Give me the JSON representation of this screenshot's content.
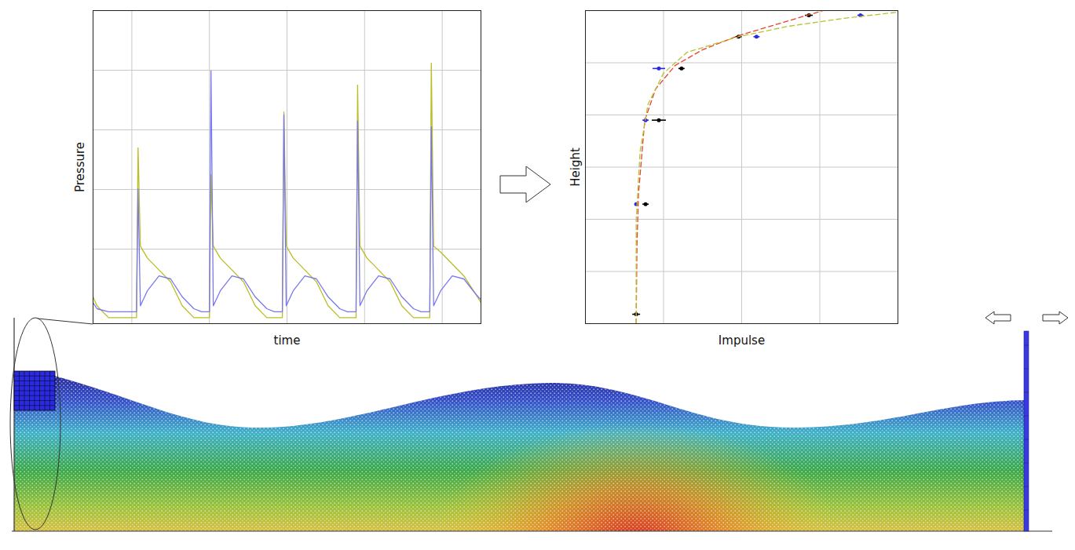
{
  "chart_data": [
    {
      "type": "line",
      "xlabel": "time",
      "ylabel": "Pressure",
      "x": [
        0,
        0.05,
        0.2,
        0.4,
        0.56,
        0.58,
        0.61,
        0.7,
        0.85,
        1.0,
        1.15,
        1.3,
        1.4,
        1.5,
        1.52,
        1.55,
        1.64,
        1.79,
        1.94,
        2.09,
        2.24,
        2.34,
        2.44,
        2.46,
        2.49,
        2.58,
        2.73,
        2.88,
        3.03,
        3.18,
        3.28,
        3.39,
        3.41,
        3.44,
        3.53,
        3.68,
        3.83,
        3.98,
        4.13,
        4.23,
        4.34,
        4.36,
        4.39,
        4.48,
        4.63,
        4.78,
        4.93,
        5.0
      ],
      "series": [
        {
          "color": "#bcbd22",
          "values": [
            0.45,
            0.3,
            0.1,
            0.1,
            0.1,
            2.95,
            1.3,
            1.1,
            0.9,
            0.7,
            0.3,
            0.1,
            0.1,
            0.1,
            2.5,
            1.3,
            1.1,
            0.9,
            0.7,
            0.3,
            0.1,
            0.1,
            0.1,
            3.55,
            1.3,
            1.1,
            0.9,
            0.7,
            0.3,
            0.1,
            0.1,
            0.1,
            4.0,
            1.3,
            1.1,
            0.9,
            0.7,
            0.3,
            0.1,
            0.1,
            0.1,
            4.37,
            1.3,
            1.2,
            1.0,
            0.8,
            0.5,
            0.35
          ]
        },
        {
          "color": "#7878f0",
          "values": [
            0.35,
            0.25,
            0.2,
            0.2,
            0.2,
            2.26,
            0.3,
            0.55,
            0.8,
            0.75,
            0.45,
            0.25,
            0.2,
            0.2,
            4.24,
            0.3,
            0.55,
            0.8,
            0.75,
            0.45,
            0.25,
            0.2,
            0.2,
            3.5,
            0.3,
            0.55,
            0.8,
            0.75,
            0.45,
            0.25,
            0.2,
            0.2,
            3.4,
            0.3,
            0.55,
            0.8,
            0.75,
            0.45,
            0.25,
            0.2,
            0.2,
            3.3,
            0.3,
            0.55,
            0.8,
            0.75,
            0.5,
            0.4
          ]
        }
      ],
      "xlim": [
        0,
        5
      ],
      "xticks": [
        0.5,
        1.5,
        2.5,
        3.5,
        4.5
      ],
      "ylim": [
        0,
        5.25
      ],
      "yticks": [
        1.25,
        2.25,
        3.25,
        4.25
      ],
      "grid": true,
      "tick_labels": false
    },
    {
      "type": "scatter",
      "xlabel": "Impulse",
      "ylabel": "Height",
      "series": [
        {
          "type": "scatter",
          "color": "#000000",
          "x": [
            0.65,
            0.77,
            0.94,
            1.23,
            1.96,
            2.86
          ],
          "values": [
            0.18,
            2.29,
            3.9,
            4.89,
            5.5,
            5.91
          ],
          "x_err": [
            0.05,
            0.04,
            0.09,
            0.04,
            0.04,
            0.05
          ]
        },
        {
          "type": "scatter",
          "color": "#2a2ae0",
          "x": [
            0.65,
            0.77,
            0.94,
            2.19,
            3.52
          ],
          "values": [
            2.29,
            3.9,
            4.89,
            5.5,
            5.91
          ],
          "x_err": [
            0.02,
            0.04,
            0.08,
            0.04,
            0.04
          ]
        },
        {
          "type": "line",
          "color": "#e8412c",
          "line_style": "dashed",
          "x": [
            0.65,
            0.66,
            0.68,
            0.76,
            0.9,
            1.15,
            1.5,
            1.96,
            2.5,
            3.04
          ],
          "values": [
            0,
            1.5,
            2.5,
            3.9,
            4.5,
            4.95,
            5.25,
            5.52,
            5.76,
            6.0
          ]
        },
        {
          "type": "line",
          "color": "#b8c22e",
          "line_style": "dashed",
          "x": [
            0.65,
            0.65,
            0.7,
            0.8,
            1.0,
            1.3,
            1.96,
            2.6,
            3.3,
            4.0
          ],
          "values": [
            0,
            2.0,
            3.3,
            4.2,
            4.8,
            5.2,
            5.5,
            5.7,
            5.85,
            5.97
          ]
        }
      ],
      "xlim": [
        0,
        4
      ],
      "xticks": [
        0,
        1,
        2,
        3,
        4
      ],
      "ylim": [
        0,
        6
      ],
      "yticks": [
        0,
        1,
        2,
        3,
        4,
        5,
        6
      ],
      "grid": true,
      "tick_labels": false
    }
  ]
}
